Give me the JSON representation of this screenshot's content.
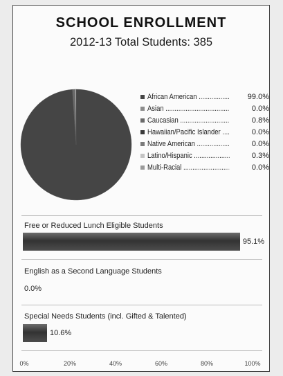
{
  "title": "SCHOOL ENROLLMENT",
  "subtitle": "2012-13 Total Students: 385",
  "chart_data": [
    {
      "type": "pie",
      "title": "",
      "series": [
        {
          "categories": [
            "African American",
            "Asian",
            "Caucasian",
            "Hawaiian/Pacific Islander",
            "Native American",
            "Latino/Hispanic",
            "Multi-Racial"
          ],
          "values": [
            99.0,
            0.0,
            0.8,
            0.0,
            0.0,
            0.3,
            0.0
          ]
        }
      ],
      "labels": [
        "99.0%",
        "0.0%",
        "0.8%",
        "0.0%",
        "0.0%",
        "0.3%",
        "0.0%"
      ],
      "colors": [
        "#454545",
        "#8c8c8c",
        "#6a6a6a",
        "#3a3a3a",
        "#7a7a7a",
        "#c4c4c4",
        "#9a9a9a"
      ],
      "legend_position": "right"
    },
    {
      "type": "bar",
      "orientation": "horizontal",
      "categories": [
        "Free or Reduced Lunch Eligible Students",
        "English as a Second Language Students",
        "Special Needs Students (incl. Gifted & Talented)"
      ],
      "values": [
        95.1,
        0.0,
        10.6
      ],
      "labels": [
        "95.1%",
        "0.0%",
        "10.6%"
      ],
      "xlim": [
        0,
        100
      ],
      "xticks": [
        "0%",
        "20%",
        "40%",
        "60%",
        "80%",
        "100%"
      ],
      "bar_color": "#333333"
    }
  ]
}
